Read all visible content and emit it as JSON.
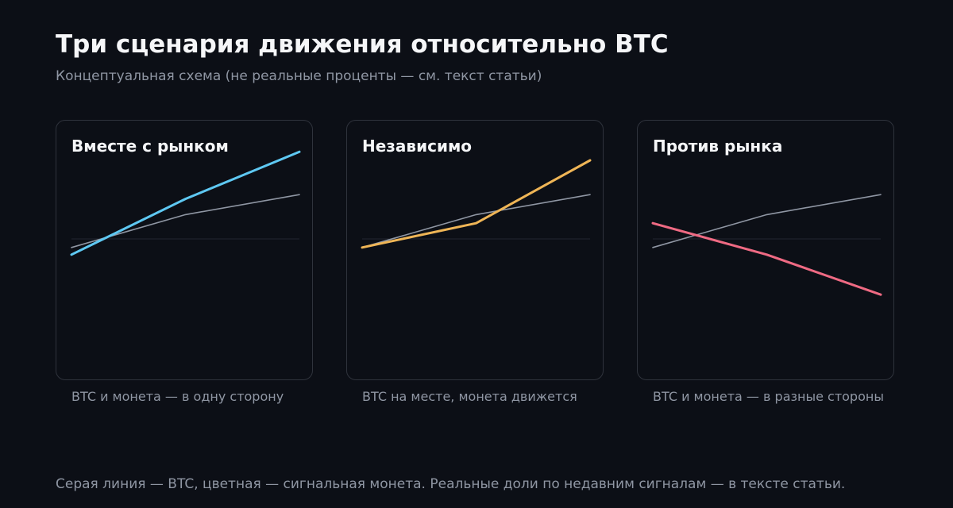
{
  "title": "Три сценария движения относительно BTC",
  "subtitle": "Концептуальная схема (не реальные проценты — см. текст статьи)",
  "footer": "Серая линия — BTC, цветная — сигнальная монета. Реальные доли по недавним сигналам — в тексте статьи.",
  "colors": {
    "background": "#0c0f16",
    "btc_line": "#8f96a3",
    "together": "#5ec8f2",
    "independent": "#efb556",
    "against": "#ef6a83"
  },
  "chart_data": [
    {
      "type": "line",
      "title": "Вместе с рынком",
      "caption": "BTC и монета — в одну сторону",
      "x": [
        0,
        1,
        2
      ],
      "ylim": [
        -1,
        1
      ],
      "series": [
        {
          "role": "btc",
          "color": "#8f96a3",
          "values": [
            -0.06,
            0.17,
            0.31
          ]
        },
        {
          "role": "coin",
          "color": "#5ec8f2",
          "values": [
            -0.11,
            0.28,
            0.61
          ]
        }
      ]
    },
    {
      "type": "line",
      "title": "Независимо",
      "caption": "BTC на месте, монета движется",
      "x": [
        0,
        1,
        2
      ],
      "ylim": [
        -1,
        1
      ],
      "series": [
        {
          "role": "btc",
          "color": "#8f96a3",
          "values": [
            -0.06,
            0.17,
            0.31
          ]
        },
        {
          "role": "coin",
          "color": "#efb556",
          "values": [
            -0.06,
            0.11,
            0.55
          ]
        }
      ]
    },
    {
      "type": "line",
      "title": "Против рынка",
      "caption": "BTC и монета — в разные стороны",
      "x": [
        0,
        1,
        2
      ],
      "ylim": [
        -1,
        1
      ],
      "series": [
        {
          "role": "btc",
          "color": "#8f96a3",
          "values": [
            -0.06,
            0.17,
            0.31
          ]
        },
        {
          "role": "coin",
          "color": "#ef6a83",
          "values": [
            0.11,
            -0.11,
            -0.39
          ]
        }
      ]
    }
  ]
}
